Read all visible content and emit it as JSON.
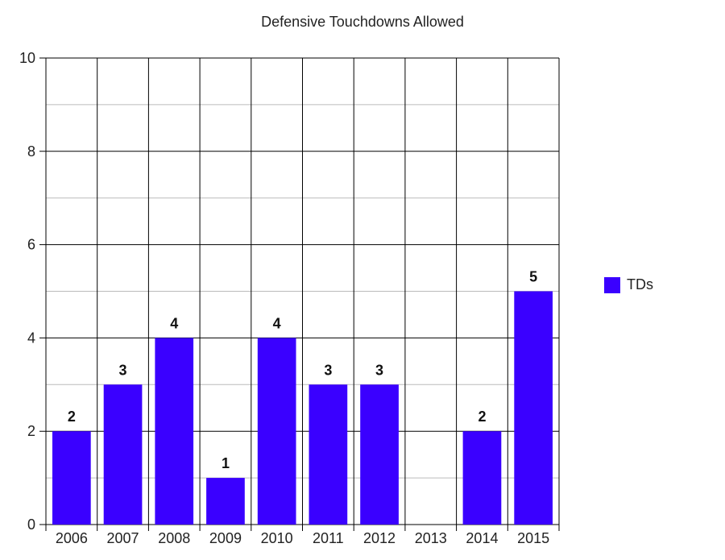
{
  "chart_data": {
    "type": "bar",
    "title": "Defensive Touchdowns Allowed",
    "categories": [
      "2006",
      "2007",
      "2008",
      "2009",
      "2010",
      "2011",
      "2012",
      "2013",
      "2014",
      "2015"
    ],
    "series": [
      {
        "name": "TDs",
        "values": [
          2,
          3,
          4,
          1,
          4,
          3,
          3,
          0,
          2,
          5
        ],
        "color": "#3a00ff"
      }
    ],
    "data_labels": [
      "2",
      "3",
      "4",
      "1",
      "4",
      "3",
      "3",
      "",
      "2",
      "5"
    ],
    "xlabel": "",
    "ylabel": "",
    "ylim": [
      0,
      10
    ],
    "yticks": [
      "0",
      "2",
      "4",
      "6",
      "8",
      "10"
    ],
    "grid": true,
    "legend_position": "right"
  }
}
